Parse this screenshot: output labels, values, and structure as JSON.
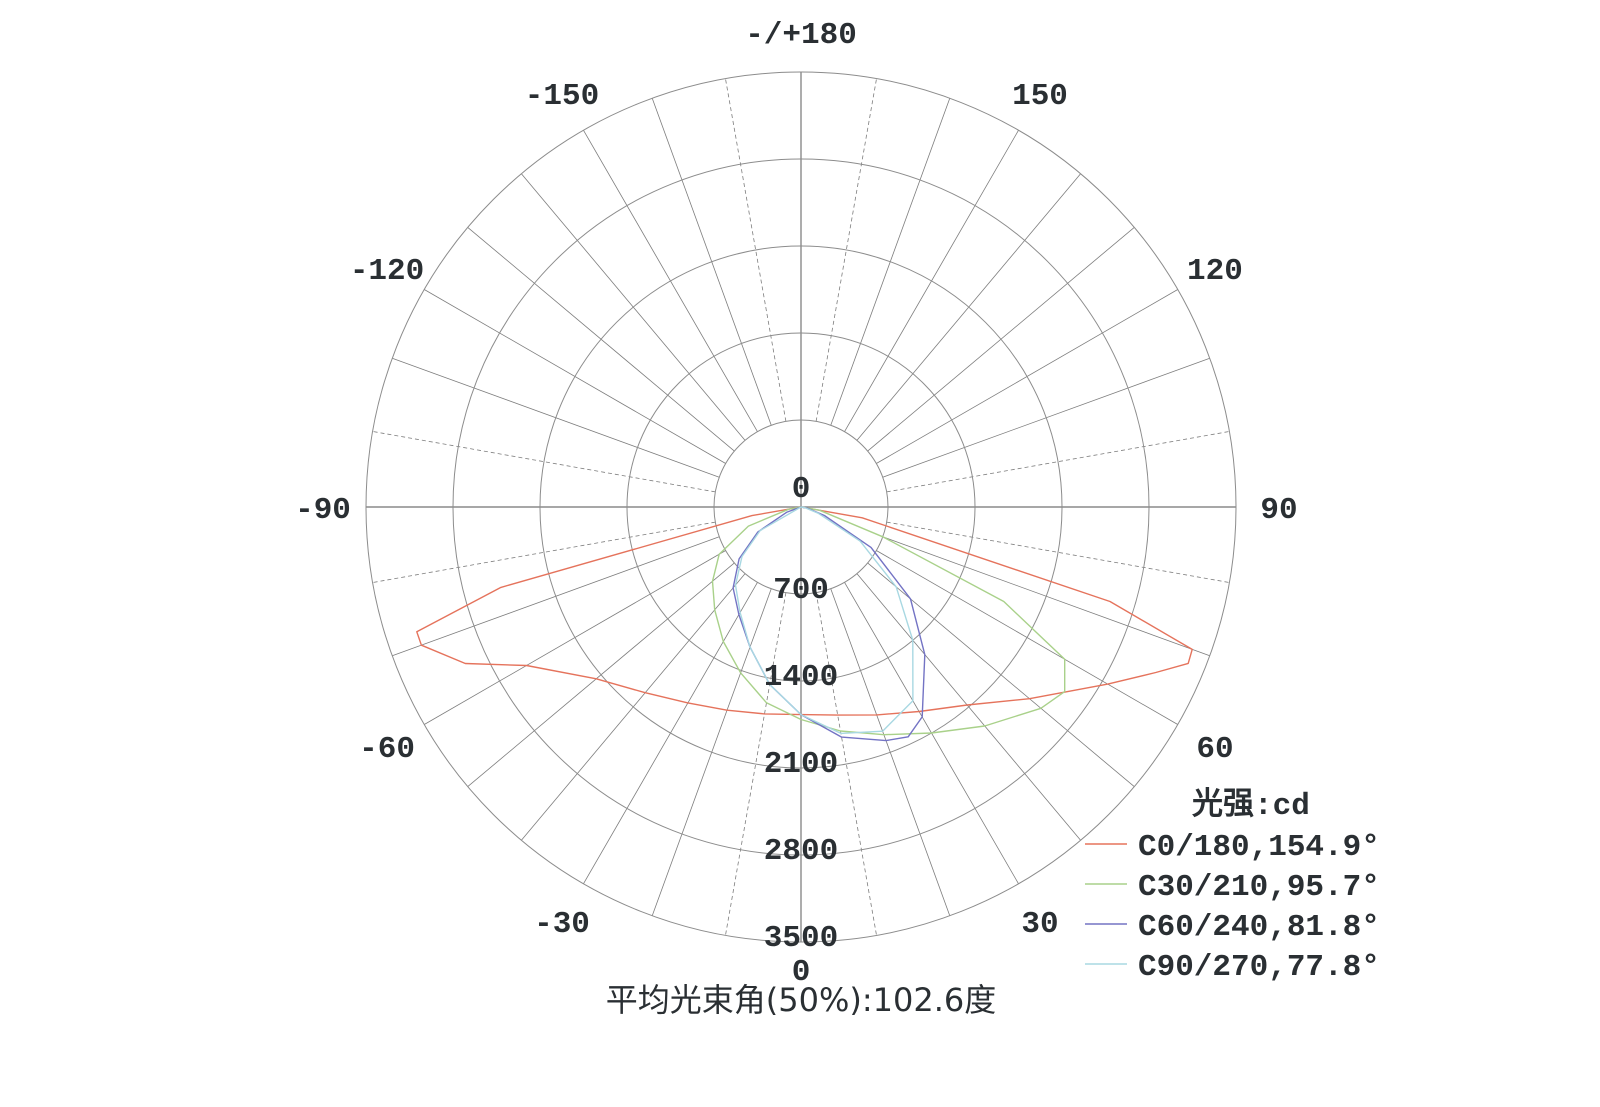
{
  "chart_data": {
    "type": "polar-line",
    "title": "平均光束角(50%):102.6度",
    "unit_label": "光强:cd",
    "radial_range": [
      0,
      3500
    ],
    "radial_ticks": [
      "0",
      "700",
      "1400",
      "2100",
      "2800",
      "3500"
    ],
    "angle_ticks": [
      {
        "angle": 180,
        "label": "-/+180"
      },
      {
        "angle": 150,
        "label": "150"
      },
      {
        "angle": -150,
        "label": "-150"
      },
      {
        "angle": 120,
        "label": "120"
      },
      {
        "angle": -120,
        "label": "-120"
      },
      {
        "angle": 90,
        "label": "90"
      },
      {
        "angle": -90,
        "label": "-90"
      },
      {
        "angle": 60,
        "label": "60"
      },
      {
        "angle": -60,
        "label": "-60"
      },
      {
        "angle": 30,
        "label": "30"
      },
      {
        "angle": -30,
        "label": "-30"
      },
      {
        "angle": 0,
        "label": "0"
      }
    ],
    "angle_grid_step_deg": 10,
    "grid": true,
    "legend_position": "bottom-right",
    "series": [
      {
        "name": "C0/180,154.9°",
        "color": "#e5735c",
        "angles": [
          -90,
          -80,
          -75,
          -72,
          -70,
          -65,
          -60,
          -50,
          -40,
          -30,
          -20,
          -10,
          0,
          10,
          20,
          30,
          40,
          50,
          60,
          65,
          68,
          70,
          73,
          80,
          90
        ],
        "values": [
          0,
          400,
          2500,
          3250,
          3250,
          2980,
          2550,
          2150,
          1950,
          1820,
          1740,
          1690,
          1670,
          1700,
          1780,
          1900,
          2080,
          2400,
          2850,
          3150,
          3360,
          3350,
          2600,
          500,
          0
        ]
      },
      {
        "name": "C30/210,95.7°",
        "color": "#a9d18a",
        "angles": [
          -90,
          -80,
          -70,
          -60,
          -50,
          -40,
          -30,
          -20,
          -10,
          0,
          10,
          20,
          30,
          40,
          50,
          55,
          60,
          65,
          70,
          80,
          90
        ],
        "values": [
          0,
          100,
          450,
          760,
          930,
          1080,
          1250,
          1420,
          1600,
          1710,
          1830,
          1950,
          2100,
          2300,
          2520,
          2590,
          2450,
          1800,
          700,
          150,
          0
        ]
      },
      {
        "name": "C60/240,81.8°",
        "color": "#7373c4",
        "angles": [
          -90,
          -70,
          -60,
          -50,
          -40,
          -30,
          -20,
          -10,
          0,
          10,
          20,
          25,
          30,
          40,
          50,
          60,
          70,
          80,
          90
        ],
        "values": [
          0,
          120,
          400,
          650,
          850,
          1000,
          1200,
          1450,
          1670,
          1880,
          2000,
          2040,
          1950,
          1550,
          1150,
          650,
          200,
          50,
          0
        ]
      },
      {
        "name": "C90/270,77.8°",
        "color": "#a8d8e2",
        "angles": [
          -90,
          -60,
          -50,
          -40,
          -30,
          -20,
          -10,
          0,
          10,
          20,
          30,
          40,
          50,
          60,
          70,
          80,
          90
        ],
        "values": [
          0,
          380,
          620,
          820,
          980,
          1200,
          1450,
          1670,
          1850,
          1920,
          1800,
          1400,
          1000,
          550,
          150,
          30,
          0
        ]
      }
    ]
  }
}
